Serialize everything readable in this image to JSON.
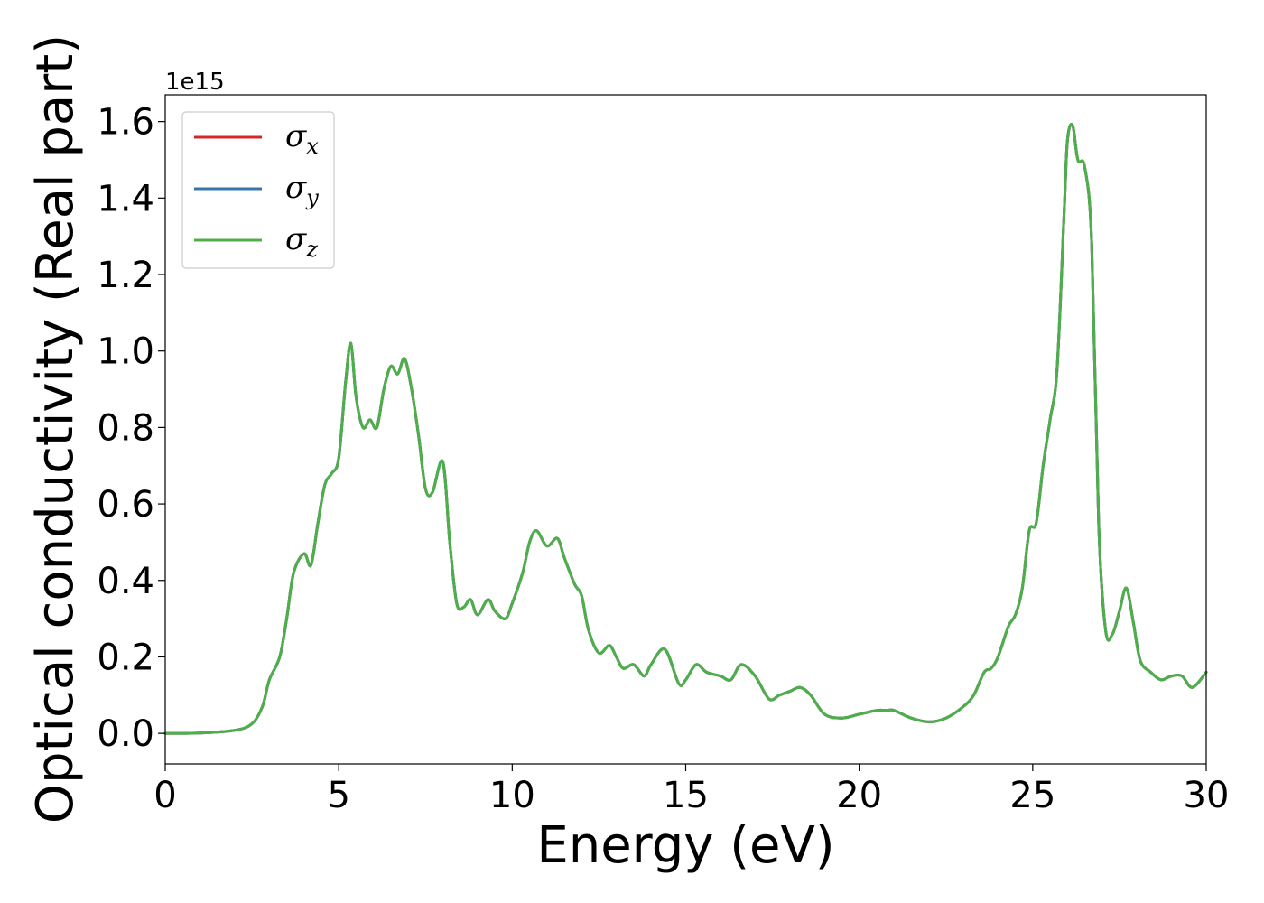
{
  "chart_data": {
    "type": "line",
    "title": "",
    "xlabel": "Energy (eV)",
    "ylabel": "Optical conductivity (Real part)",
    "y_offset_text": "1e15",
    "xlim": [
      0,
      30
    ],
    "ylim": [
      -0.08,
      1.67
    ],
    "x_ticks": [
      0,
      5,
      10,
      15,
      20,
      25,
      30
    ],
    "x_tick_labels": [
      "0",
      "5",
      "10",
      "15",
      "20",
      "25",
      "30"
    ],
    "y_ticks": [
      0.0,
      0.2,
      0.4,
      0.6,
      0.8,
      1.0,
      1.2,
      1.4,
      1.6
    ],
    "y_tick_labels": [
      "0.0",
      "0.2",
      "0.4",
      "0.6",
      "0.8",
      "1.0",
      "1.2",
      "1.4",
      "1.6"
    ],
    "grid": false,
    "legend_position": "top-left",
    "x": [
      0,
      1,
      2,
      2.5,
      2.8,
      3.0,
      3.3,
      3.5,
      3.7,
      4.0,
      4.2,
      4.4,
      4.6,
      4.8,
      5.0,
      5.2,
      5.35,
      5.5,
      5.7,
      5.9,
      6.1,
      6.3,
      6.5,
      6.7,
      6.9,
      7.1,
      7.3,
      7.5,
      7.7,
      8.0,
      8.2,
      8.4,
      8.6,
      8.8,
      9.0,
      9.3,
      9.5,
      9.8,
      10.0,
      10.3,
      10.5,
      10.7,
      11.0,
      11.3,
      11.5,
      11.8,
      12.0,
      12.2,
      12.5,
      12.8,
      13.0,
      13.2,
      13.5,
      13.8,
      14.0,
      14.4,
      14.8,
      15.0,
      15.3,
      15.6,
      16.0,
      16.3,
      16.6,
      17.0,
      17.4,
      17.7,
      18.0,
      18.3,
      18.6,
      19.0,
      19.5,
      20.0,
      20.5,
      20.8,
      21.0,
      21.5,
      22.0,
      22.5,
      23.0,
      23.3,
      23.6,
      23.8,
      24.0,
      24.3,
      24.5,
      24.7,
      24.9,
      25.1,
      25.3,
      25.5,
      25.7,
      25.9,
      26.0,
      26.15,
      26.3,
      26.5,
      26.7,
      26.9,
      27.1,
      27.3,
      27.5,
      27.7,
      27.9,
      28.1,
      28.4,
      28.7,
      29.0,
      29.3,
      29.6,
      30.0
    ],
    "series": [
      {
        "name": "σx",
        "color": "#d62728",
        "values": [
          0,
          0.001,
          0.008,
          0.025,
          0.07,
          0.14,
          0.2,
          0.3,
          0.42,
          0.47,
          0.44,
          0.55,
          0.65,
          0.68,
          0.72,
          0.92,
          1.02,
          0.88,
          0.8,
          0.82,
          0.8,
          0.9,
          0.96,
          0.94,
          0.98,
          0.9,
          0.78,
          0.64,
          0.63,
          0.71,
          0.5,
          0.34,
          0.33,
          0.35,
          0.31,
          0.35,
          0.32,
          0.3,
          0.34,
          0.42,
          0.5,
          0.53,
          0.49,
          0.51,
          0.46,
          0.39,
          0.36,
          0.27,
          0.21,
          0.23,
          0.2,
          0.17,
          0.18,
          0.15,
          0.18,
          0.22,
          0.13,
          0.14,
          0.18,
          0.16,
          0.15,
          0.14,
          0.18,
          0.15,
          0.09,
          0.1,
          0.11,
          0.12,
          0.1,
          0.05,
          0.04,
          0.05,
          0.06,
          0.06,
          0.06,
          0.04,
          0.03,
          0.04,
          0.07,
          0.1,
          0.16,
          0.17,
          0.2,
          0.28,
          0.31,
          0.38,
          0.53,
          0.55,
          0.7,
          0.82,
          0.95,
          1.35,
          1.55,
          1.59,
          1.5,
          1.48,
          1.28,
          0.55,
          0.27,
          0.26,
          0.32,
          0.38,
          0.29,
          0.19,
          0.16,
          0.14,
          0.15,
          0.15,
          0.12,
          0.16
        ]
      },
      {
        "name": "σy",
        "color": "#3776ab",
        "values": [
          0,
          0.001,
          0.008,
          0.025,
          0.07,
          0.14,
          0.2,
          0.3,
          0.42,
          0.47,
          0.44,
          0.55,
          0.65,
          0.68,
          0.72,
          0.92,
          1.02,
          0.88,
          0.8,
          0.82,
          0.8,
          0.9,
          0.96,
          0.94,
          0.98,
          0.9,
          0.78,
          0.64,
          0.63,
          0.71,
          0.5,
          0.34,
          0.33,
          0.35,
          0.31,
          0.35,
          0.32,
          0.3,
          0.34,
          0.42,
          0.5,
          0.53,
          0.49,
          0.51,
          0.46,
          0.39,
          0.36,
          0.27,
          0.21,
          0.23,
          0.2,
          0.17,
          0.18,
          0.15,
          0.18,
          0.22,
          0.13,
          0.14,
          0.18,
          0.16,
          0.15,
          0.14,
          0.18,
          0.15,
          0.09,
          0.1,
          0.11,
          0.12,
          0.1,
          0.05,
          0.04,
          0.05,
          0.06,
          0.06,
          0.06,
          0.04,
          0.03,
          0.04,
          0.07,
          0.1,
          0.16,
          0.17,
          0.2,
          0.28,
          0.31,
          0.38,
          0.53,
          0.55,
          0.7,
          0.82,
          0.95,
          1.35,
          1.55,
          1.59,
          1.5,
          1.48,
          1.28,
          0.55,
          0.27,
          0.26,
          0.32,
          0.38,
          0.29,
          0.19,
          0.16,
          0.14,
          0.15,
          0.15,
          0.12,
          0.16
        ]
      },
      {
        "name": "σz",
        "color": "#4daf4a",
        "values": [
          0,
          0.001,
          0.008,
          0.025,
          0.07,
          0.14,
          0.2,
          0.3,
          0.42,
          0.47,
          0.44,
          0.55,
          0.65,
          0.68,
          0.72,
          0.92,
          1.02,
          0.88,
          0.8,
          0.82,
          0.8,
          0.9,
          0.96,
          0.94,
          0.98,
          0.9,
          0.78,
          0.64,
          0.63,
          0.71,
          0.5,
          0.34,
          0.33,
          0.35,
          0.31,
          0.35,
          0.32,
          0.3,
          0.34,
          0.42,
          0.5,
          0.53,
          0.49,
          0.51,
          0.46,
          0.39,
          0.36,
          0.27,
          0.21,
          0.23,
          0.2,
          0.17,
          0.18,
          0.15,
          0.18,
          0.22,
          0.13,
          0.14,
          0.18,
          0.16,
          0.15,
          0.14,
          0.18,
          0.15,
          0.09,
          0.1,
          0.11,
          0.12,
          0.1,
          0.05,
          0.04,
          0.05,
          0.06,
          0.06,
          0.06,
          0.04,
          0.03,
          0.04,
          0.07,
          0.1,
          0.16,
          0.17,
          0.2,
          0.28,
          0.31,
          0.38,
          0.53,
          0.55,
          0.7,
          0.82,
          0.95,
          1.35,
          1.55,
          1.59,
          1.5,
          1.48,
          1.28,
          0.55,
          0.27,
          0.26,
          0.32,
          0.38,
          0.29,
          0.19,
          0.16,
          0.14,
          0.15,
          0.15,
          0.12,
          0.16
        ]
      }
    ],
    "legend": [
      {
        "symbol": "σ",
        "sub": "x",
        "color": "#d62728"
      },
      {
        "symbol": "σ",
        "sub": "y",
        "color": "#3776ab"
      },
      {
        "symbol": "σ",
        "sub": "z",
        "color": "#4daf4a"
      }
    ]
  }
}
